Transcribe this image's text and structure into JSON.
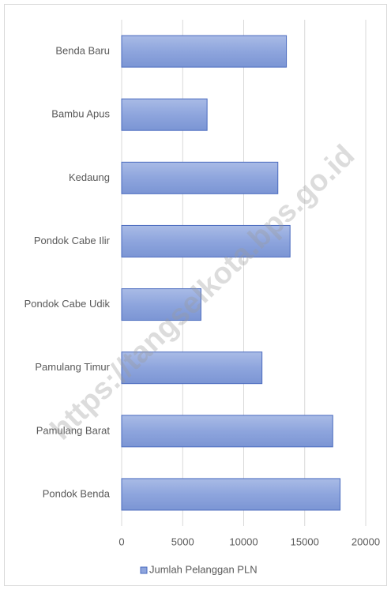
{
  "chart_data": {
    "type": "barh",
    "categories": [
      "Benda Baru",
      "Bambu Apus",
      "Kedaung",
      "Pondok Cabe Ilir",
      "Pondok Cabe Udik",
      "Pamulang Timur",
      "Pamulang Barat",
      "Pondok Benda"
    ],
    "series": [
      {
        "name": "Jumlah Pelanggan PLN",
        "color": "#8ea5dd",
        "values": [
          13500,
          7000,
          12800,
          13800,
          6500,
          11500,
          17300,
          17900
        ]
      }
    ],
    "xlim": [
      0,
      20000
    ],
    "xticks": [
      0,
      5000,
      10000,
      15000,
      20000
    ],
    "grid": true,
    "legend": "bottom",
    "watermark": "https://tangselkota.bps.go.id"
  }
}
